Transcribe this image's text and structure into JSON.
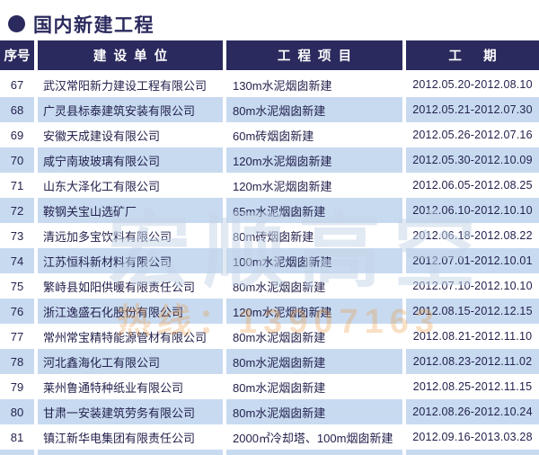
{
  "page": {
    "bullet": "●",
    "title": "国内新建工程"
  },
  "colors": {
    "header_bg": "#2b2a5e",
    "row_alt_bg": "#c8daf0",
    "title_color": "#2b2a5e",
    "text_color": "#23224e"
  },
  "watermark": {
    "big_text": "宏顺高空",
    "phone_text": "热线：13907163"
  },
  "table": {
    "columns": [
      {
        "key": "no",
        "label": "序号"
      },
      {
        "key": "company",
        "label": "建  设  单  位"
      },
      {
        "key": "project",
        "label": "工  程  项  目"
      },
      {
        "key": "period",
        "label": "工      期"
      }
    ],
    "rows": [
      {
        "no": "67",
        "company": "武汉常阳新力建设工程有限公司",
        "project": "130m水泥烟囱新建",
        "period": "2012.05.20-2012.08.10"
      },
      {
        "no": "68",
        "company": "广灵县标泰建筑安装有限公司",
        "project": "80m水泥烟囱新建",
        "period": "2012.05.21-2012.07.30"
      },
      {
        "no": "69",
        "company": "安徽天成建设有限公司",
        "project": "60m砖烟囱新建",
        "period": "2012.05.26-2012.07.16"
      },
      {
        "no": "70",
        "company": "咸宁南玻玻璃有限公司",
        "project": "120m水泥烟囱新建",
        "period": "2012.05.30-2012.10.09"
      },
      {
        "no": "71",
        "company": "山东大泽化工有限公司",
        "project": "120m水泥烟囱新建",
        "period": "2012.06.05-2012.08.25"
      },
      {
        "no": "72",
        "company": "鞍钢关宝山选矿厂",
        "project": "65m水泥烟囱新建",
        "period": "2012.06.10-2012.10.10"
      },
      {
        "no": "73",
        "company": "清远加多宝饮料有限公司",
        "project": "80m砖烟囱新建",
        "period": "2012.06.18-2012.08.22"
      },
      {
        "no": "74",
        "company": "江苏恒科新材料有限公司",
        "project": "100m水泥烟囱新建",
        "period": "2012.07.01-2012.10.01"
      },
      {
        "no": "75",
        "company": "繁峙县如阳供暖有限责任公司",
        "project": "80m水泥烟囱新建",
        "period": "2012.07.10-2012.10.10"
      },
      {
        "no": "76",
        "company": "浙江逸盛石化股份有限公司",
        "project": "120m水泥烟囱新建",
        "period": "2012.08.15-2012.12.15"
      },
      {
        "no": "77",
        "company": "常州常宝精特能源管材有限公司",
        "project": "80m水泥烟囱新建",
        "period": "2012.08.21-2012.11.10"
      },
      {
        "no": "78",
        "company": "河北鑫海化工有限公司",
        "project": "80m水泥烟囱新建",
        "period": "2012.08.23-2012.11.02"
      },
      {
        "no": "79",
        "company": "莱州鲁通特种纸业有限公司",
        "project": "80m水泥烟囱新建",
        "period": "2012.08.25-2012.11.15"
      },
      {
        "no": "80",
        "company": "甘肃一安装建筑劳务有限公司",
        "project": "80m水泥烟囱新建",
        "period": "2012.08.26-2012.10.24"
      },
      {
        "no": "81",
        "company": "镇江新华电集团有限责任公司",
        "project": "2000㎡冷却塔、100m烟囱新建",
        "period": "2012.09.16-2013.03.28"
      }
    ]
  }
}
